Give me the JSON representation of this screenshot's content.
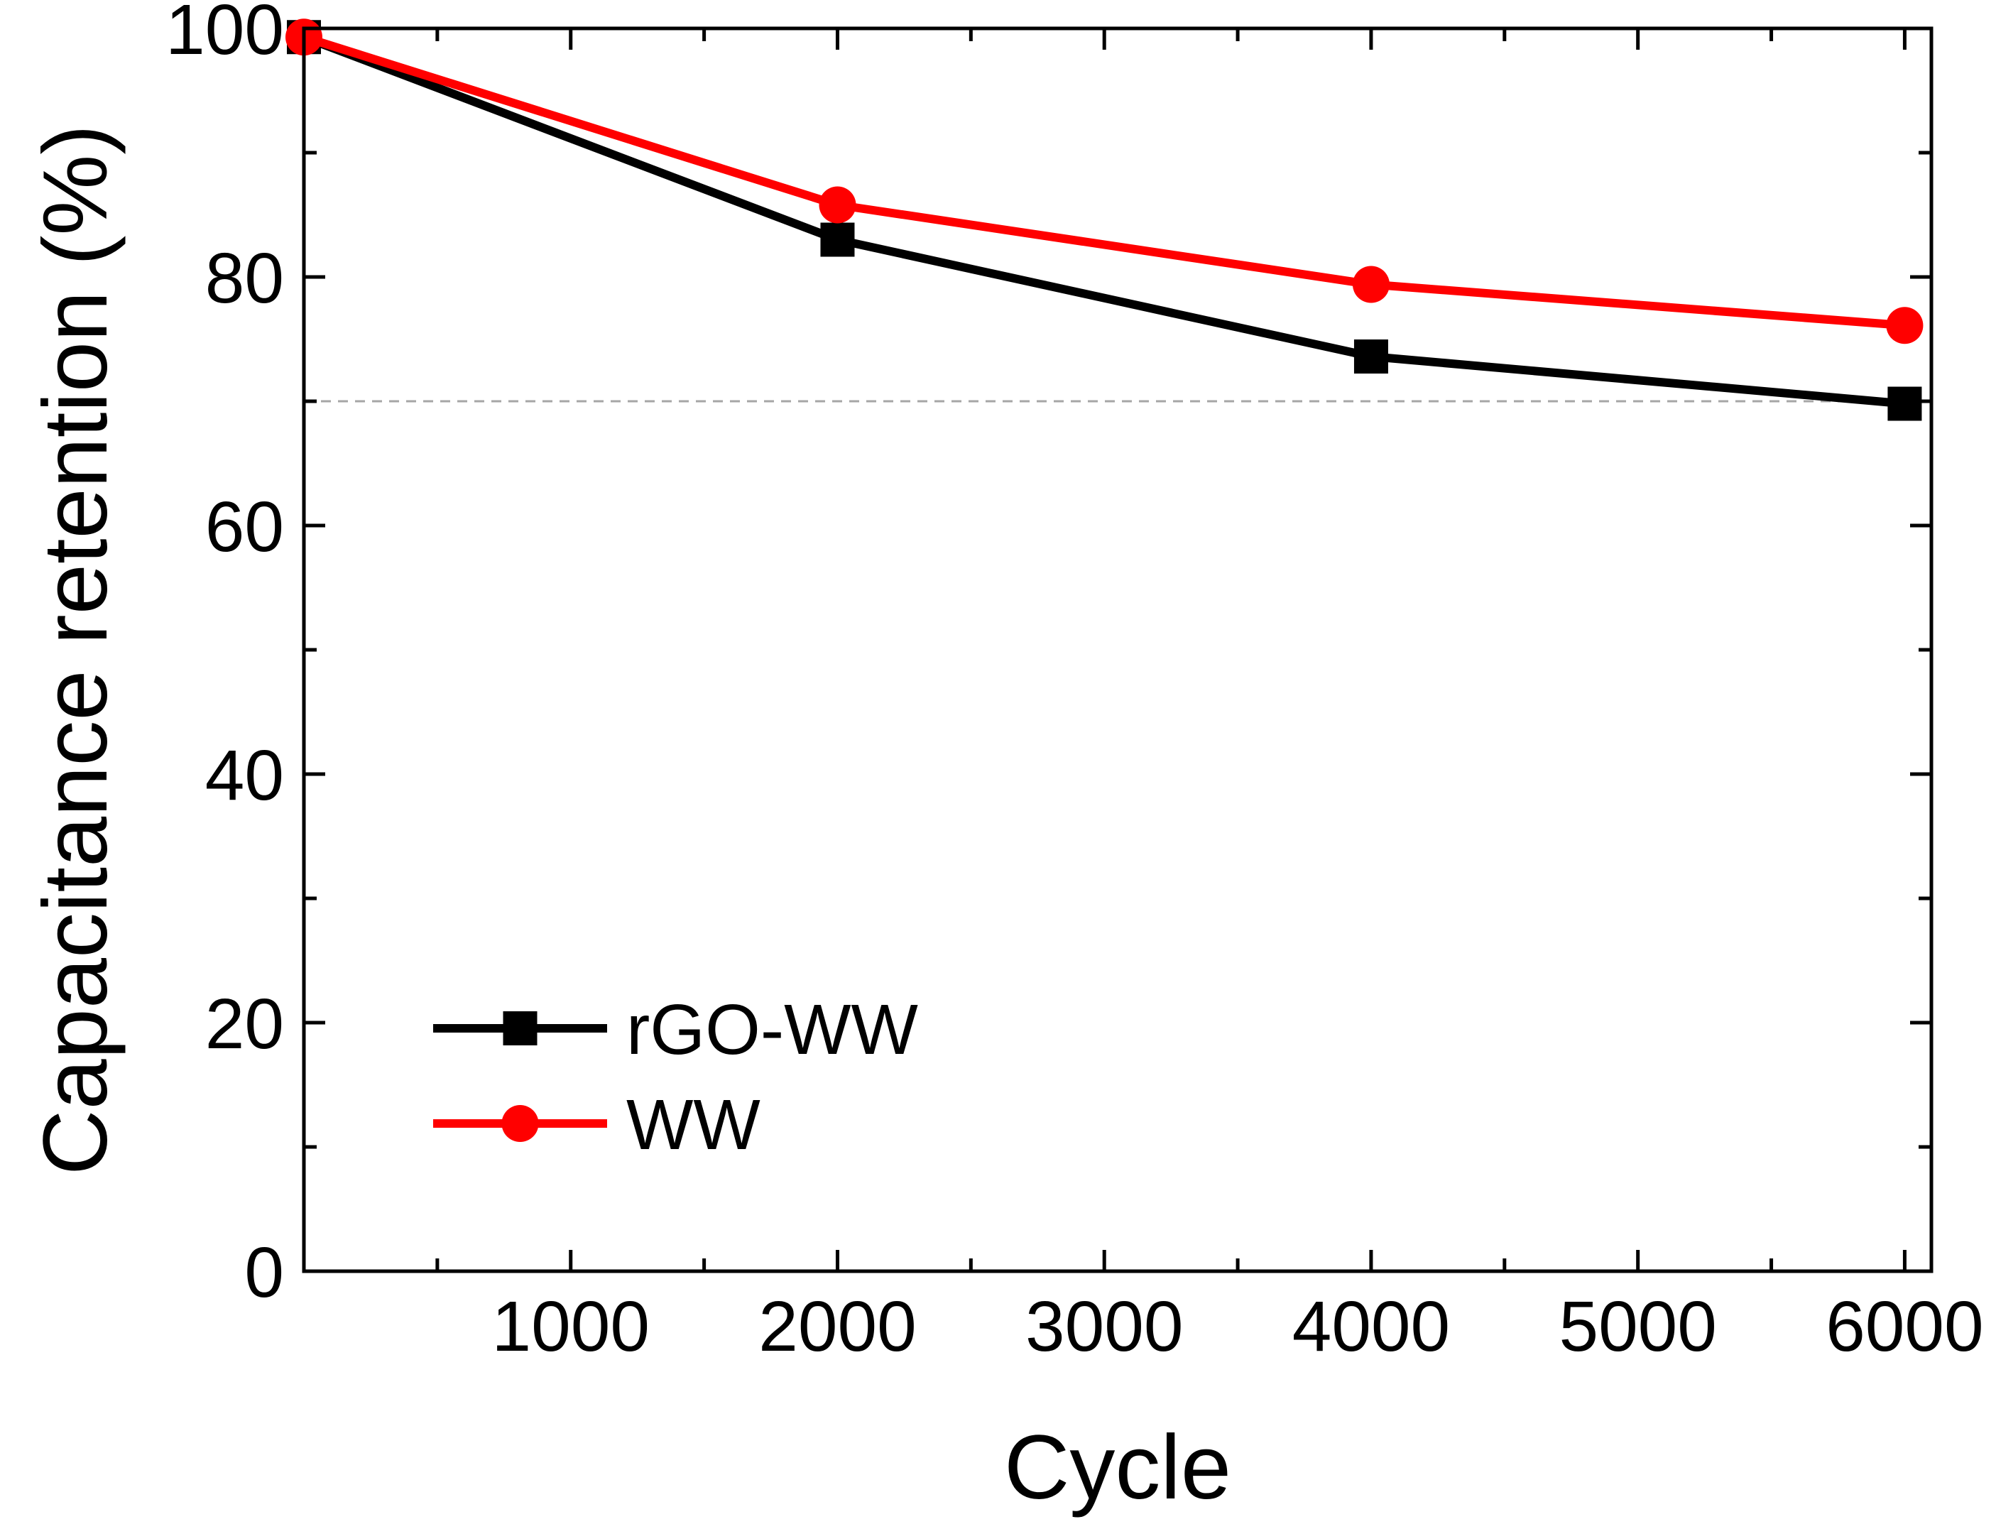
{
  "chart_data": {
    "type": "line",
    "title": "",
    "xlabel": "Cycle",
    "ylabel": "Capacitance retention (%)",
    "xlim": [
      0,
      6100
    ],
    "ylim": [
      0,
      100
    ],
    "x_major_ticks": [
      1000,
      2000,
      3000,
      4000,
      5000,
      6000
    ],
    "x_minor_ticks": [
      500,
      1500,
      2500,
      3500,
      4500,
      5500
    ],
    "y_major_ticks": [
      0,
      20,
      40,
      60,
      80,
      100
    ],
    "y_minor_ticks": [
      10,
      30,
      50,
      70,
      90
    ],
    "x_tick_labels": [
      "1000",
      "2000",
      "3000",
      "4000",
      "5000",
      "6000"
    ],
    "y_tick_labels": [
      "0",
      "20",
      "40",
      "60",
      "80",
      "100"
    ],
    "reference_line": {
      "y": 70,
      "style": "dashed",
      "color": "#a6a6a6"
    },
    "legend_position": "bottom-left",
    "series": [
      {
        "name": "rGO-WW",
        "color": "#000000",
        "marker": "square",
        "x": [
          0,
          2000,
          4000,
          6000
        ],
        "y": [
          99.3,
          83.0,
          73.6,
          69.8
        ]
      },
      {
        "name": "WW",
        "color": "#ff0000",
        "marker": "circle",
        "x": [
          0,
          2000,
          4000,
          6000
        ],
        "y": [
          99.3,
          85.8,
          79.4,
          76.1
        ]
      }
    ]
  }
}
